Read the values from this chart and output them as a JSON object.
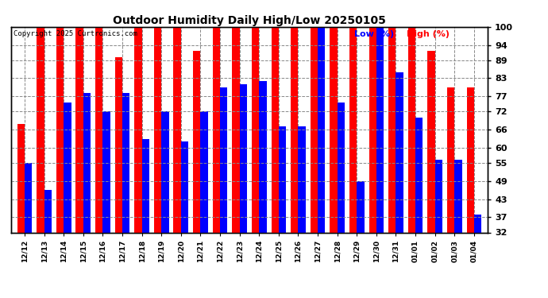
{
  "title": "Outdoor Humidity Daily High/Low 20250105",
  "copyright": "Copyright 2025 Curtronics.com",
  "legend_low": "Low (%)",
  "legend_high": "High (%)",
  "dates": [
    "12/12",
    "12/13",
    "12/14",
    "12/15",
    "12/16",
    "12/17",
    "12/18",
    "12/19",
    "12/20",
    "12/21",
    "12/22",
    "12/23",
    "12/24",
    "12/25",
    "12/26",
    "12/27",
    "12/28",
    "12/29",
    "12/30",
    "12/31",
    "01/01",
    "01/02",
    "01/03",
    "01/04"
  ],
  "high_values": [
    68,
    100,
    100,
    100,
    100,
    90,
    100,
    100,
    100,
    92,
    100,
    100,
    100,
    100,
    100,
    100,
    100,
    100,
    100,
    100,
    100,
    92,
    80,
    80
  ],
  "low_values": [
    55,
    46,
    75,
    78,
    72,
    78,
    63,
    72,
    62,
    72,
    80,
    81,
    82,
    67,
    67,
    100,
    75,
    49,
    100,
    85,
    70,
    56,
    56,
    38
  ],
  "ylim_min": 32,
  "ylim_max": 100,
  "yticks": [
    32,
    37,
    43,
    49,
    55,
    60,
    66,
    72,
    77,
    83,
    89,
    94,
    100
  ],
  "high_color": "#ff0000",
  "low_color": "#0000ff",
  "background_color": "#ffffff",
  "grid_color": "#888888",
  "bar_width": 0.38
}
